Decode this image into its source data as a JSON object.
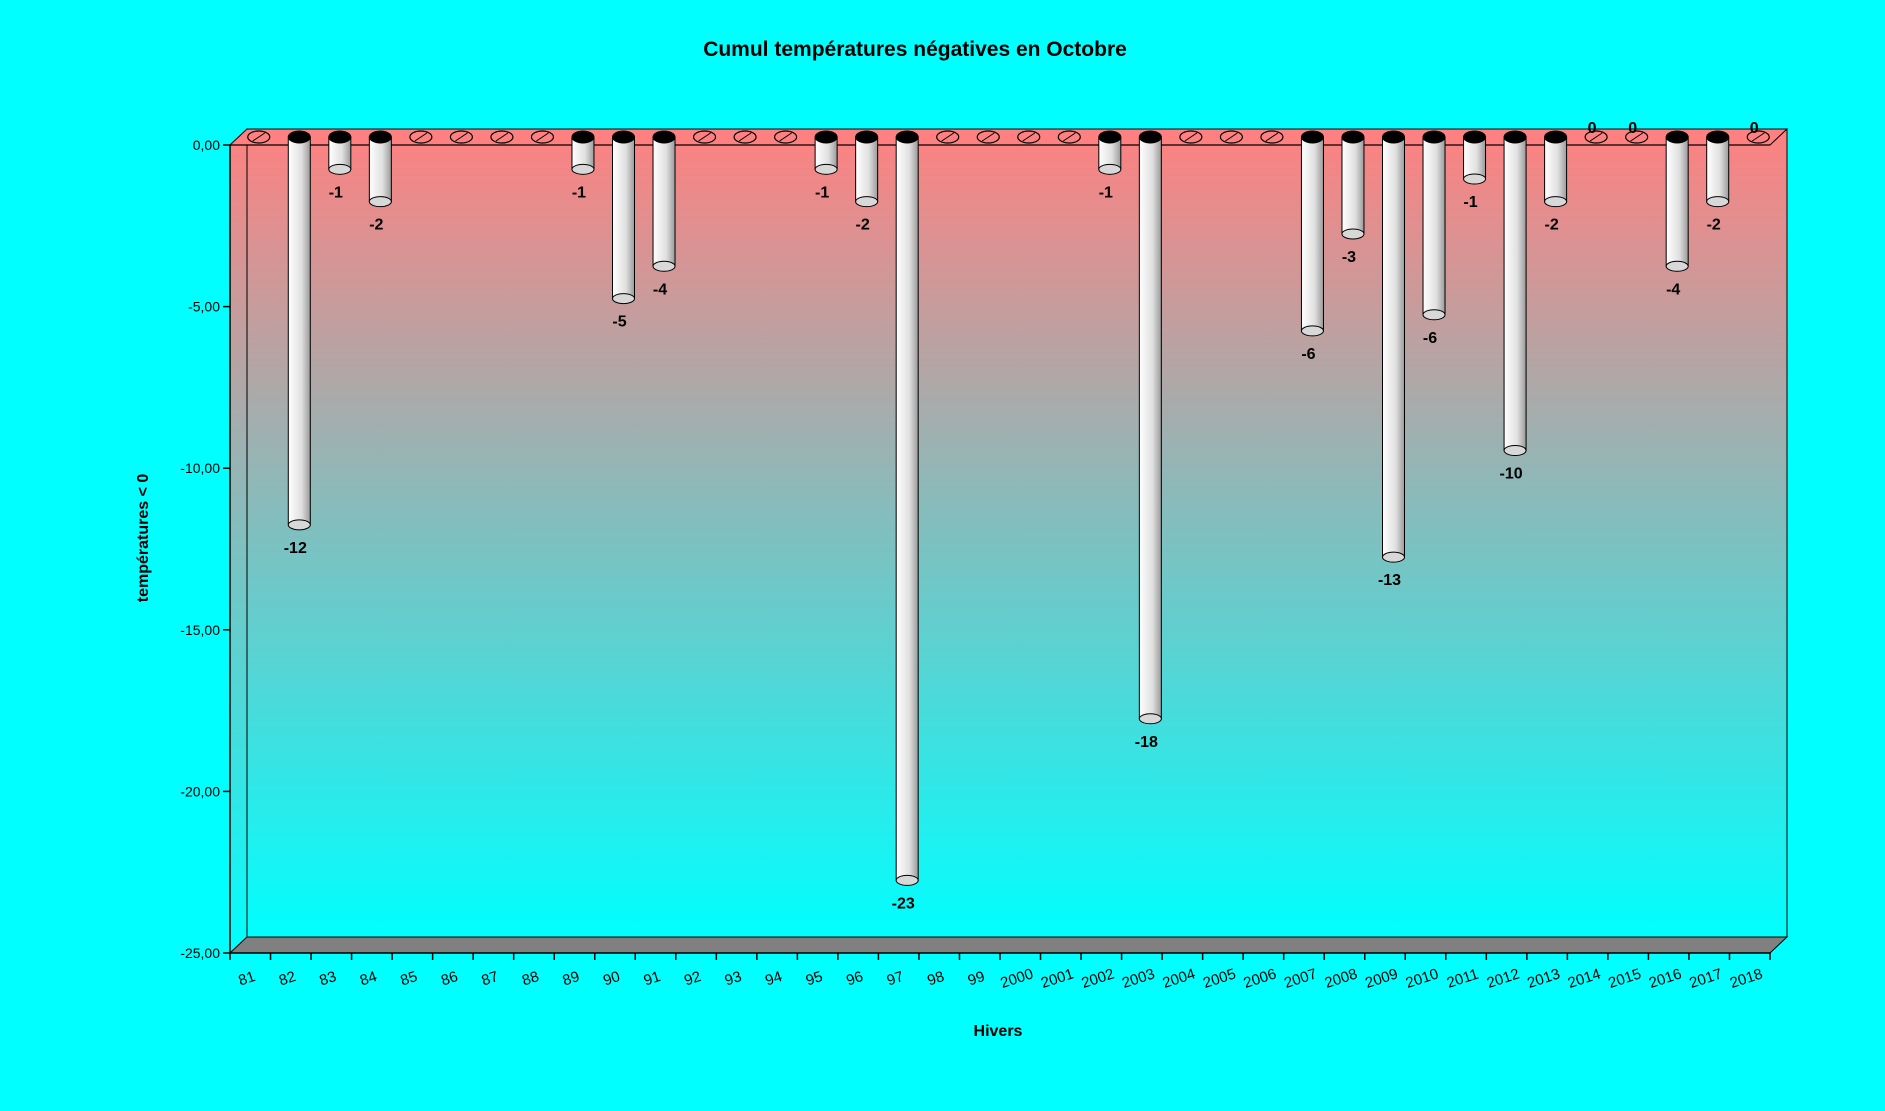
{
  "chart_data": {
    "type": "bar",
    "title": "Cumul températures négatives en  Octobre",
    "xlabel": "Hivers",
    "ylabel": "températures < 0",
    "ylim": [
      -25,
      0
    ],
    "yticks": [
      "0,00",
      "-5,00",
      "-10,00",
      "-15,00",
      "-20,00",
      "-25,00"
    ],
    "ytick_values": [
      0,
      -5,
      -10,
      -15,
      -20,
      -25
    ],
    "categories": [
      "81",
      "82",
      "83",
      "84",
      "85",
      "86",
      "87",
      "88",
      "89",
      "90",
      "91",
      "92",
      "93",
      "94",
      "95",
      "96",
      "97",
      "98",
      "99",
      "2000",
      "2001",
      "2002",
      "2003",
      "2004",
      "2005",
      "2006",
      "2007",
      "2008",
      "2009",
      "2010",
      "2011",
      "2012",
      "2013",
      "2014",
      "2015",
      "2016",
      "2017",
      "2018"
    ],
    "values": [
      0,
      -12,
      -1,
      -2,
      0,
      0,
      0,
      0,
      -1,
      -5,
      -4,
      0,
      0,
      0,
      -1,
      -2,
      -23,
      0,
      0,
      0,
      0,
      -1,
      -18,
      0,
      0,
      0,
      -6,
      -3,
      -13,
      -5.5,
      -1.3,
      -9.7,
      -2,
      0,
      0,
      -4,
      -2,
      0
    ],
    "data_labels": [
      "",
      "-12",
      "-1",
      "-2",
      "",
      "",
      "",
      "",
      "-1",
      "-5",
      "-4",
      "",
      "",
      "",
      "-1",
      "-2",
      "-23",
      "",
      "",
      "",
      "",
      "-1",
      "-18",
      "",
      "",
      "",
      "-6",
      "-3",
      "-13",
      "-6",
      "-1",
      "-10",
      "-2",
      "0",
      "0",
      "-4",
      "-2",
      "0"
    ],
    "grid": false,
    "legend": "none",
    "background_colors": {
      "outer": "#00ffff",
      "plot_top": "#ff8080",
      "plot_bottom": "#00ffff",
      "floor": "#808080",
      "bar_light": "#ffffff",
      "bar_dark": "#a0a0a0",
      "bar_cap": "#000000"
    }
  }
}
